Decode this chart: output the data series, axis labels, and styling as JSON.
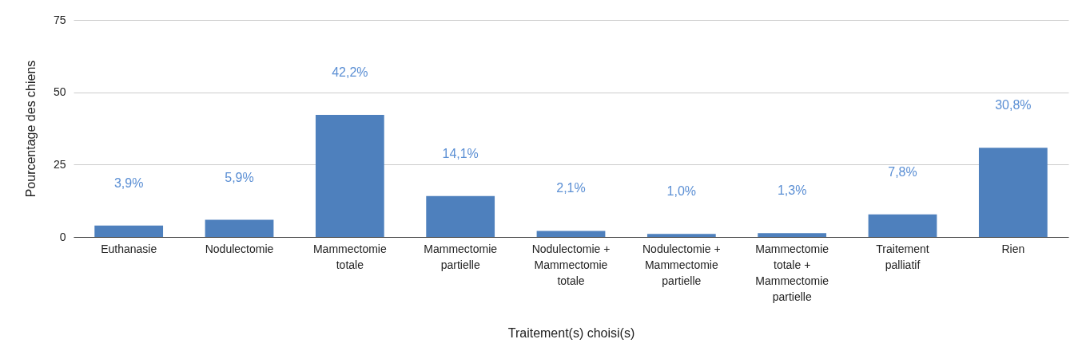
{
  "chart_data": {
    "type": "bar",
    "xlabel": "Traitement(s) choisi(s)",
    "ylabel": "Pourcentage des chiens",
    "categories": [
      "Euthanasie",
      "Nodulectomie",
      "Mammectomie totale",
      "Mammectomie partielle",
      "Nodulectomie + Mammectomie totale",
      "Nodulectomie + Mammectomie partielle",
      "Mammectomie totale + Mammectomie partielle",
      "Traitement palliatif",
      "Rien"
    ],
    "values": [
      3.9,
      5.9,
      42.2,
      14.1,
      2.1,
      1.0,
      1.3,
      7.8,
      30.8
    ],
    "value_labels": [
      "3,9%",
      "5,9%",
      "42,2%",
      "14,1%",
      "2,1%",
      "1,0%",
      "1,3%",
      "7,8%",
      "30,8%"
    ],
    "color": "#4e80bd",
    "ylim": [
      0,
      75
    ],
    "yticks": [
      0,
      25,
      50,
      75
    ],
    "grid": "y"
  }
}
